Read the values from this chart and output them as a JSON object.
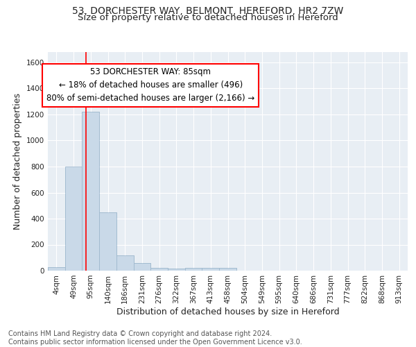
{
  "title_line1": "53, DORCHESTER WAY, BELMONT, HEREFORD, HR2 7ZW",
  "title_line2": "Size of property relative to detached houses in Hereford",
  "xlabel": "Distribution of detached houses by size in Hereford",
  "ylabel": "Number of detached properties",
  "footer_line1": "Contains HM Land Registry data © Crown copyright and database right 2024.",
  "footer_line2": "Contains public sector information licensed under the Open Government Licence v3.0.",
  "categories": [
    "4sqm",
    "49sqm",
    "95sqm",
    "140sqm",
    "186sqm",
    "231sqm",
    "276sqm",
    "322sqm",
    "367sqm",
    "413sqm",
    "458sqm",
    "504sqm",
    "549sqm",
    "595sqm",
    "640sqm",
    "686sqm",
    "731sqm",
    "777sqm",
    "822sqm",
    "868sqm",
    "913sqm"
  ],
  "values": [
    28,
    800,
    1220,
    450,
    120,
    58,
    22,
    15,
    20,
    22,
    20,
    0,
    0,
    0,
    0,
    0,
    0,
    0,
    0,
    0,
    0
  ],
  "bar_color": "#c9d9e8",
  "bar_edge_color": "#9ab5cb",
  "ylim": [
    0,
    1680
  ],
  "yticks": [
    0,
    200,
    400,
    600,
    800,
    1000,
    1200,
    1400,
    1600
  ],
  "red_line_x": 1.72,
  "annotation_box_text_line1": "53 DORCHESTER WAY: 85sqm",
  "annotation_box_text_line2": "← 18% of detached houses are smaller (496)",
  "annotation_box_text_line3": "80% of semi-detached houses are larger (2,166) →",
  "background_color": "#e8eef4",
  "grid_color": "#ffffff",
  "title_fontsize": 10,
  "subtitle_fontsize": 9.5,
  "axis_label_fontsize": 9,
  "tick_fontsize": 7.5,
  "footer_fontsize": 7,
  "annotation_fontsize": 8.5
}
